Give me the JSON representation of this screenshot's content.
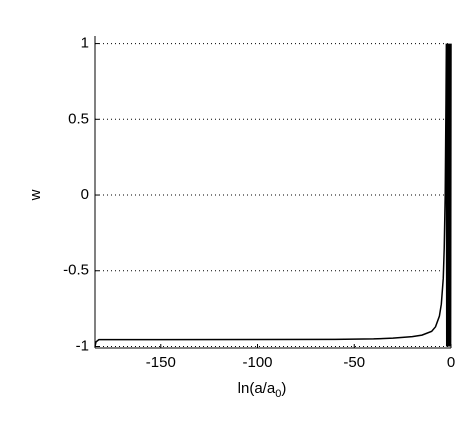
{
  "chart_data": {
    "type": "line",
    "xlabel": [
      "ln(a/a",
      "0",
      ")"
    ],
    "ylabel": "w",
    "x": [
      -184,
      -183.5,
      -182,
      -170,
      -150,
      -100,
      -60,
      -40,
      -30,
      -20,
      -15,
      -10,
      -8,
      -6,
      -5,
      -4,
      -3.5,
      -3,
      -2.6,
      -2.4,
      -2.2,
      -2.0,
      -1.8,
      -1.6,
      -1.4,
      -1.2,
      -1.0,
      -0.8,
      -0.6,
      -0.4,
      -0.2,
      0
    ],
    "series": [
      {
        "color": "#000000",
        "values": [
          -1,
          -0.97,
          -0.955,
          -0.955,
          -0.955,
          -0.954,
          -0.953,
          -0.95,
          -0.945,
          -0.935,
          -0.925,
          -0.9,
          -0.87,
          -0.8,
          -0.72,
          -0.55,
          -0.35,
          0,
          0.6,
          1,
          -1,
          1,
          -1,
          1,
          -1,
          1,
          -1,
          1,
          -1,
          1,
          -1,
          1
        ]
      }
    ],
    "xlim": [
      -184,
      0
    ],
    "ylim": [
      -1.01,
      1.05
    ],
    "xticks": [
      -150,
      -100,
      -50,
      0
    ],
    "yticks": [
      -1,
      -0.5,
      0,
      0.5,
      1
    ],
    "grid": "y"
  }
}
